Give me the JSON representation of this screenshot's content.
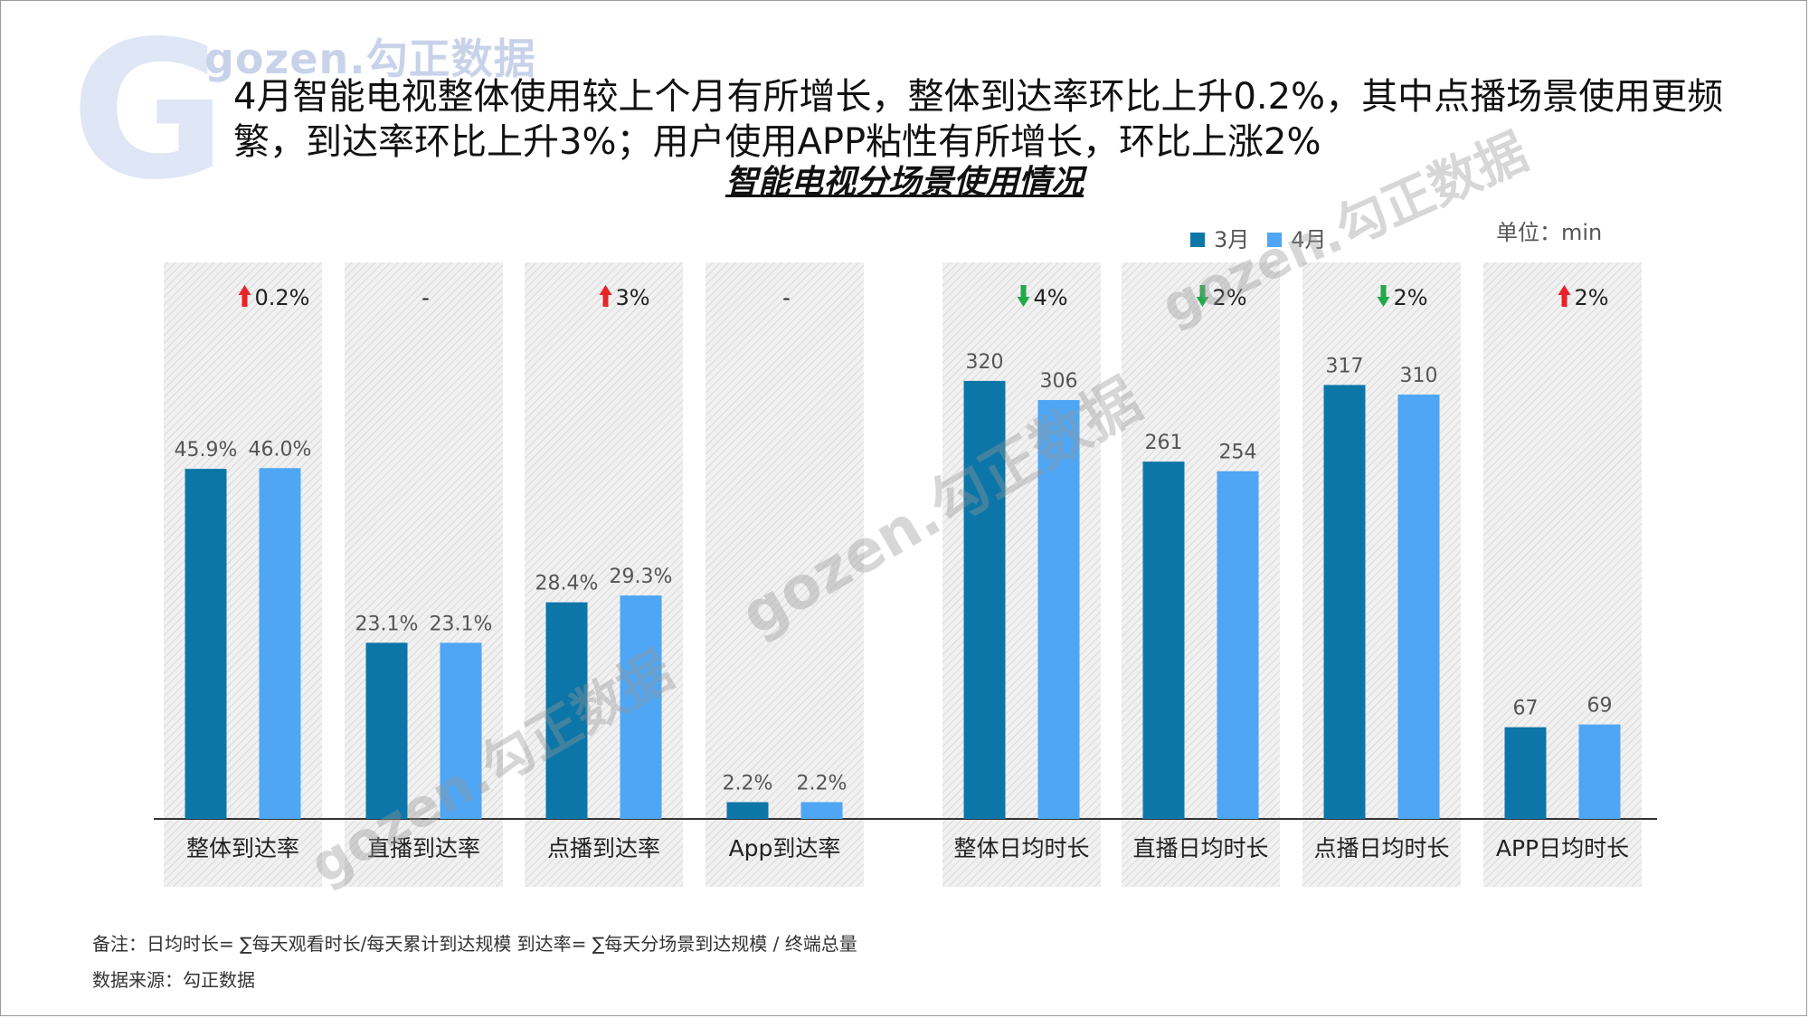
{
  "brand": {
    "logo_letter": "G",
    "logo_text": "gozen.勾正数据"
  },
  "headline": "4月智能电视整体使用较上个月有所增长，整体到达率环比上升0.2%，其中点播场景使用更频繁，到达率环比上升3%；用户使用APP粘性有所增长，环比上涨2%",
  "watermark": "gozen.勾正数据",
  "unit_label": "单位：min",
  "note": "备注：日均时长= ∑每天观看时长/每天累计到达规模    到达率= ∑每天分场景到达规模 / 终端总量",
  "source": "数据来源：勾正数据",
  "colors": {
    "march": "#0d76a8",
    "april": "#4ea6f4",
    "up": "#e8232a",
    "down": "#21a84a"
  },
  "chart_data": {
    "type": "bar",
    "title": "智能电视分场景使用情况",
    "legend_position": "top-right",
    "series": [
      {
        "name": "3月",
        "color": "#0d76a8"
      },
      {
        "name": "4月",
        "color": "#4ea6f4"
      }
    ],
    "groups": [
      {
        "category": "整体到达率",
        "unit": "%",
        "values": [
          45.9,
          46.0
        ],
        "labels": [
          "45.9%",
          "46.0%"
        ],
        "change": "0.2%",
        "direction": "up"
      },
      {
        "category": "直播到达率",
        "unit": "%",
        "values": [
          23.1,
          23.1
        ],
        "labels": [
          "23.1%",
          "23.1%"
        ],
        "change": "-",
        "direction": "none"
      },
      {
        "category": "点播到达率",
        "unit": "%",
        "values": [
          28.4,
          29.3
        ],
        "labels": [
          "28.4%",
          "29.3%"
        ],
        "change": "3%",
        "direction": "up"
      },
      {
        "category": "App到达率",
        "unit": "%",
        "values": [
          2.2,
          2.2
        ],
        "labels": [
          "2.2%",
          "2.2%"
        ],
        "change": "-",
        "direction": "none"
      },
      {
        "category": "整体日均时长",
        "unit": "min",
        "values": [
          320,
          306
        ],
        "labels": [
          "320",
          "306"
        ],
        "change": "4%",
        "direction": "down"
      },
      {
        "category": "直播日均时长",
        "unit": "min",
        "values": [
          261,
          254
        ],
        "labels": [
          "261",
          "254"
        ],
        "change": "2%",
        "direction": "down"
      },
      {
        "category": "点播日均时长",
        "unit": "min",
        "values": [
          317,
          310
        ],
        "labels": [
          "317",
          "310"
        ],
        "change": "2%",
        "direction": "down"
      },
      {
        "category": "APP日均时长",
        "unit": "min",
        "values": [
          67,
          69
        ],
        "labels": [
          "67",
          "69"
        ],
        "change": "2%",
        "direction": "up"
      }
    ],
    "ylim_percent": [
      0,
      70
    ],
    "ylim_minutes": [
      0,
      390
    ],
    "grid": false
  }
}
